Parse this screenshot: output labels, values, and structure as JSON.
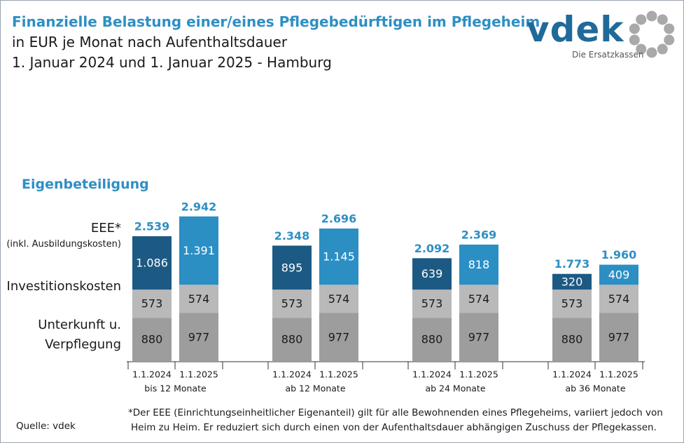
{
  "header": {
    "title": "Finanzielle Belastung einer/eines Pflegebedürftigen im Pflegeheim",
    "subtitle1": "in EUR je Monat nach Aufenthaltsdauer",
    "subtitle2": "1. Januar 2024 und 1. Januar 2025 - Hamburg"
  },
  "logo": {
    "text": "vdek",
    "tagline": "Die Ersatzkassen"
  },
  "row_labels": {
    "eigenbeteiligung": "Eigenbeteiligung",
    "eee": "EEE*",
    "eee_sub": "(inkl. Ausbildungskosten)",
    "invest": "Investitionskosten",
    "unterkunft_1": "Unterkunft u.",
    "unterkunft_2": "Verpflegung"
  },
  "footnote_1": "*Der EEE (Einrichtungseinheitlicher Eigenanteil) gilt für alle Bewohnenden eines Pflegeheims, variiert jedoch von",
  "footnote_2": "Heim zu Heim. Er reduziert sich durch einen von der Aufenthaltsdauer abhängigen Zuschuss der Pflegekassen.",
  "source": "Quelle: vdek",
  "colors": {
    "eee_2024": "#1c5a84",
    "eee_2025": "#2b8fc4",
    "invest": "#b9b9b9",
    "unterkunft": "#9d9d9d",
    "total_label": "#2e8fc3"
  },
  "chart_data": {
    "type": "bar",
    "stacked": true,
    "groups": [
      "bis 12 Monate",
      "ab 12 Monate",
      "ab 24 Monate",
      "ab 36 Monate"
    ],
    "categories": [
      "1.1.2024",
      "1.1.2025"
    ],
    "series": [
      {
        "name": "Unterkunft u. Verpflegung",
        "values": [
          [
            880,
            977
          ],
          [
            880,
            977
          ],
          [
            880,
            977
          ],
          [
            880,
            977
          ]
        ]
      },
      {
        "name": "Investitionskosten",
        "values": [
          [
            573,
            574
          ],
          [
            573,
            574
          ],
          [
            573,
            574
          ],
          [
            573,
            574
          ]
        ]
      },
      {
        "name": "EEE* (inkl. Ausbildungskosten)",
        "values": [
          [
            1086,
            1391
          ],
          [
            895,
            1145
          ],
          [
            639,
            818
          ],
          [
            320,
            409
          ]
        ]
      }
    ],
    "segment_labels": {
      "unterkunft": [
        [
          "880",
          "977"
        ],
        [
          "880",
          "977"
        ],
        [
          "880",
          "977"
        ],
        [
          "880",
          "977"
        ]
      ],
      "invest": [
        [
          "573",
          "574"
        ],
        [
          "573",
          "574"
        ],
        [
          "573",
          "574"
        ],
        [
          "573",
          "574"
        ]
      ],
      "eee": [
        [
          "1.086",
          "1.391"
        ],
        [
          "895",
          "1.145"
        ],
        [
          "639",
          "818"
        ],
        [
          "320",
          "409"
        ]
      ]
    },
    "totals": [
      [
        2539,
        2942
      ],
      [
        2348,
        2696
      ],
      [
        2092,
        2369
      ],
      [
        1773,
        1960
      ]
    ],
    "total_labels": [
      [
        "2.539",
        "2.942"
      ],
      [
        "2.348",
        "2.696"
      ],
      [
        "2.092",
        "2.369"
      ],
      [
        "1.773",
        "1.960"
      ]
    ],
    "legend_title": "Eigenbeteiligung"
  }
}
